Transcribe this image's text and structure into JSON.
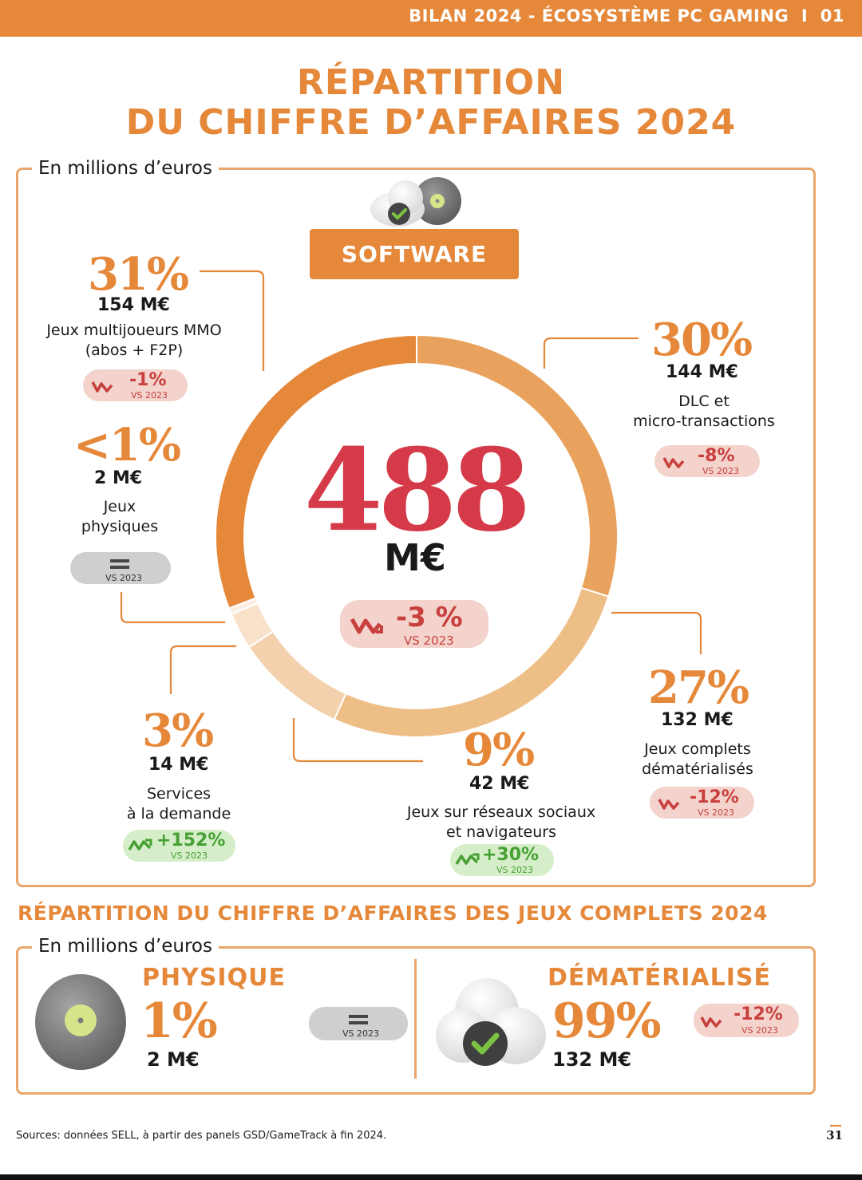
{
  "header": {
    "left": "BILAN 2024 - ",
    "bold": "ÉCOSYSTÈME PC GAMING",
    "sep": "I",
    "num": "01"
  },
  "title": {
    "line1": "RÉPARTITION",
    "line2": "DU CHIFFRE D’AFFAIRES 2024"
  },
  "unit_label": "En millions d’euros",
  "software_label": "SOFTWARE",
  "total": {
    "value": "488",
    "unit": "M€",
    "change": "-3 %",
    "vs": "VS 2023"
  },
  "colors": {
    "accent": "#E5883A",
    "red": "#D53A48",
    "down": "#C8403E",
    "up": "#46A033"
  },
  "chart_data": {
    "type": "pie",
    "title": "",
    "slices": [
      {
        "name": "Jeux multijoueurs MMO (abos + F2P)",
        "pct": 31,
        "pct_label": "31%",
        "value": 154,
        "amount": "154 M€",
        "change": "-1%",
        "vs": "VS 2023",
        "trend": "down",
        "color": "#E5883A"
      },
      {
        "name": "DLC et micro-transactions",
        "pct": 30,
        "pct_label": "30%",
        "value": 144,
        "amount": "144 M€",
        "change": "-8%",
        "vs": "VS 2023",
        "trend": "down",
        "color": "#E9A25D"
      },
      {
        "name": "Jeux complets dématérialisés",
        "pct": 27,
        "pct_label": "27%",
        "value": 132,
        "amount": "132 M€",
        "change": "-12%",
        "vs": "VS 2023",
        "trend": "down",
        "color": "#EEBE87"
      },
      {
        "name": "Jeux sur réseaux sociaux et navigateurs",
        "pct": 9,
        "pct_label": "9%",
        "value": 42,
        "amount": "42 M€",
        "change": "+30%",
        "vs": "VS 2023",
        "trend": "up",
        "color": "#F3D1AC"
      },
      {
        "name": "Services à la demande",
        "pct": 3,
        "pct_label": "3%",
        "value": 14,
        "amount": "14 M€",
        "change": "+152%",
        "vs": "VS 2023",
        "trend": "up",
        "color": "#F8E2CA"
      },
      {
        "name": "Jeux physiques",
        "pct": 0.5,
        "pct_label": "<1%",
        "value": 2,
        "amount": "2 M€",
        "change": "=",
        "vs": "VS 2023",
        "trend": "flat",
        "color": "#FBEEE0"
      }
    ]
  },
  "labels": {
    "mmo": {
      "line1": "Jeux multijoueurs MMO",
      "line2": "(abos + F2P)"
    },
    "physical": {
      "line1": "Jeux",
      "line2": "physiques"
    },
    "dlc": {
      "line1": "DLC et",
      "line2": "micro-transactions"
    },
    "digital": {
      "line1": "Jeux complets",
      "line2": "dématérialisés"
    },
    "social": {
      "line1": "Jeux sur réseaux sociaux",
      "line2": "et navigateurs"
    },
    "services": {
      "line1": "Services",
      "line2": "à la demande"
    }
  },
  "full_games": {
    "title": "RÉPARTITION DU CHIFFRE D’AFFAIRES DES JEUX COMPLETS 2024",
    "unit_label": "En millions d’euros",
    "physical": {
      "label": "PHYSIQUE",
      "pct": "1%",
      "amount": "2 M€",
      "vs": "VS 2023"
    },
    "digital": {
      "label": "DÉMATÉRIALISÉ",
      "pct": "99%",
      "amount": "132 M€",
      "change": "-12%",
      "vs": "VS 2023"
    }
  },
  "footer": {
    "sources": "Sources: données SELL, à partir des panels GSD/GameTrack à fin 2024.",
    "page": "31"
  }
}
